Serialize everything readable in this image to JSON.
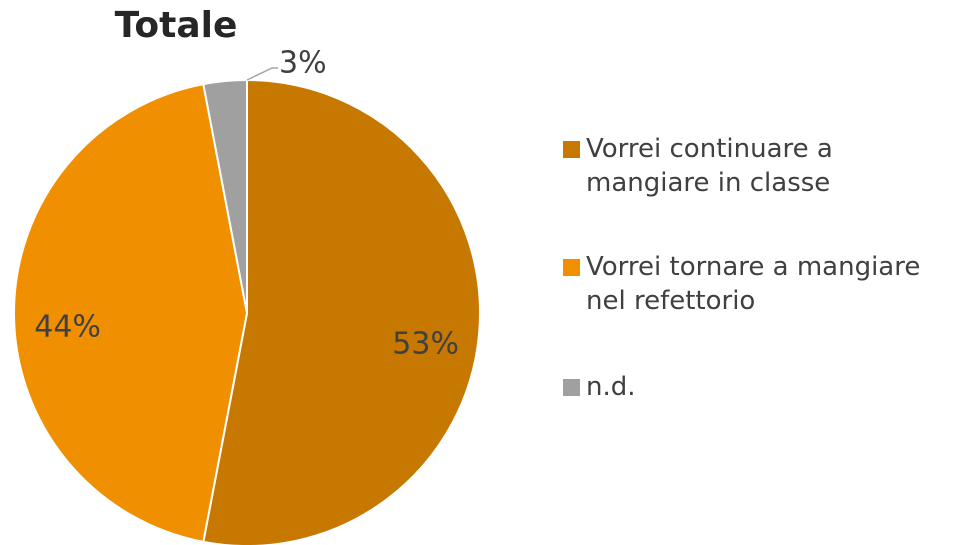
{
  "chart_data": {
    "type": "pie",
    "title": "Totale",
    "categories": [
      "Vorrei continuare a mangiare in classe",
      "Vorrei tornare a mangiare nel refettorio",
      "n.d."
    ],
    "values": [
      53,
      44,
      3
    ],
    "value_labels": [
      "53%",
      "44%",
      "3%"
    ],
    "colors": [
      "#c77800",
      "#f09000",
      "#a0a0a0"
    ],
    "legend": "right"
  }
}
